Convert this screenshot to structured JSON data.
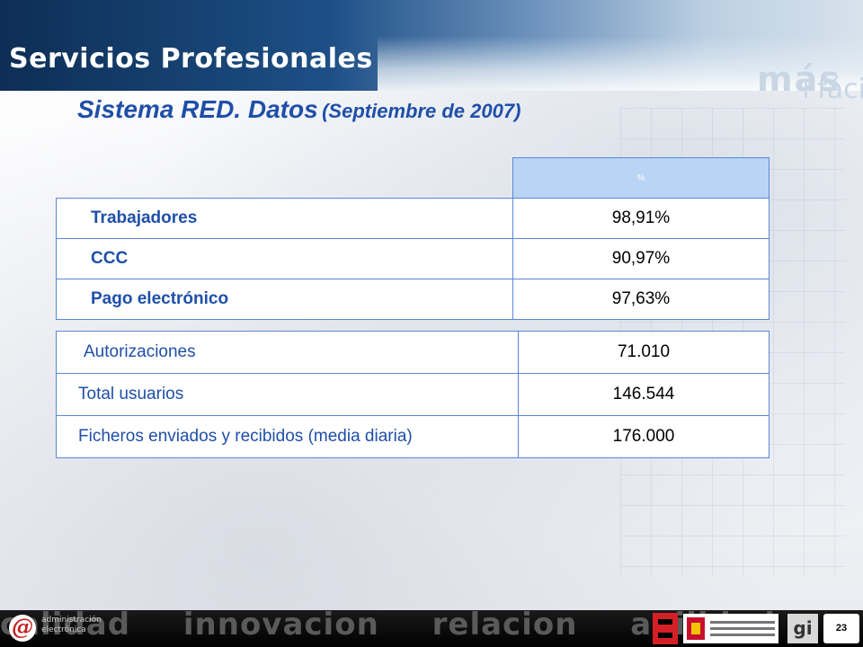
{
  "header": {
    "section_title": "Servicios Profesionales",
    "tagline_line1": "más",
    "tagline_line2": "+fácil"
  },
  "slide": {
    "title_main": "Sistema RED. Datos",
    "title_sub": "(Septiembre de 2007)"
  },
  "table_percentages": {
    "header": "%",
    "rows": [
      {
        "label": "Trabajadores",
        "value": "98,91%"
      },
      {
        "label": "CCC",
        "value": "90,97%"
      },
      {
        "label": "Pago electrónico",
        "value": "97,63%"
      }
    ]
  },
  "table_totals": {
    "rows": [
      {
        "label": "Autorizaciones",
        "value": "71.010"
      },
      {
        "label": "Total usuarios",
        "value": "146.544"
      },
      {
        "label": "Ficheros enviados y recibidos (media diaria)",
        "value": "176.000"
      }
    ]
  },
  "footer": {
    "words": [
      "calidad",
      "innovacion",
      "relacion",
      "agilidad"
    ],
    "logo_line1": "administración",
    "logo_line2": "electrónica",
    "page_number": "23"
  },
  "colors": {
    "title_blue": "#1f4fa8",
    "table_border": "#5b87d6",
    "header_cell": "#b9d4f4"
  }
}
